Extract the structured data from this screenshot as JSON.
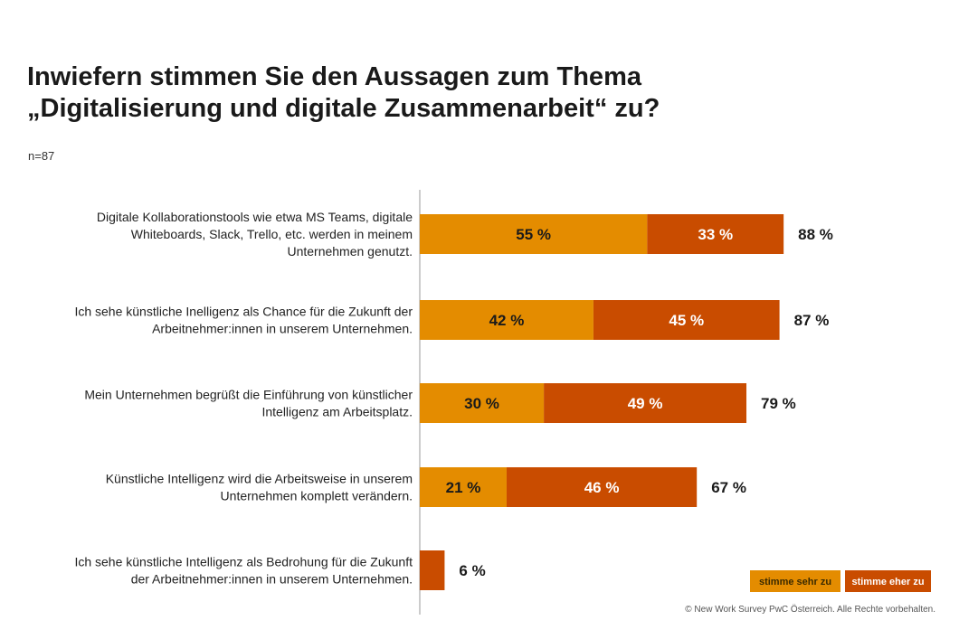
{
  "title_lines": [
    "Inwiefern stimmen Sie den Aussagen zum Thema",
    "„Digitalisierung und digitale Zusammenarbeit“ zu?"
  ],
  "sample_size": "n=87",
  "copyright": "© New Work Survey PwC Österreich. Alle Rechte vorbehalten.",
  "colors": {
    "sehr": "#E48C00",
    "eher": "#C94C00",
    "axis": "#999999",
    "text": "#1a1a1a"
  },
  "chart_data": {
    "type": "bar",
    "orientation": "horizontal",
    "stacked": true,
    "categories": [
      [
        "Digitale Kollaborationstools wie etwa MS Teams, digitale",
        "Whiteboards, Slack, Trello, etc. werden in meinem",
        "Unternehmen genutzt."
      ],
      [
        "Ich sehe künstliche Inelligenz als Chance für die Zukunft der",
        "Arbeitnehmer:innen in unserem Unternehmen."
      ],
      [
        "Mein Unternehmen begrüßt die Einführung von künstlicher",
        "Intelligenz am Arbeitsplatz."
      ],
      [
        "Künstliche Intelligenz wird die Arbeitsweise in unserem",
        "Unternehmen komplett verändern."
      ],
      [
        "Ich sehe künstliche Intelligenz als Bedrohung für die Zukunft",
        "der Arbeitnehmer:innen in unserem Unternehmen."
      ]
    ],
    "series": [
      {
        "name": "stimme sehr zu",
        "values": [
          55,
          42,
          30,
          21,
          0
        ],
        "labels": [
          "55 %",
          "42 %",
          "30 %",
          "21 %",
          ""
        ]
      },
      {
        "name": "stimme eher zu",
        "values": [
          33,
          45,
          49,
          46,
          6
        ],
        "labels": [
          "33 %",
          "45 %",
          "49 %",
          "46 %",
          ""
        ]
      }
    ],
    "totals": [
      "88 %",
      "87 %",
      "79 %",
      "67 %",
      "6 %"
    ],
    "xlim": [
      0,
      100
    ],
    "legend": "bottom-right",
    "grid": false
  }
}
